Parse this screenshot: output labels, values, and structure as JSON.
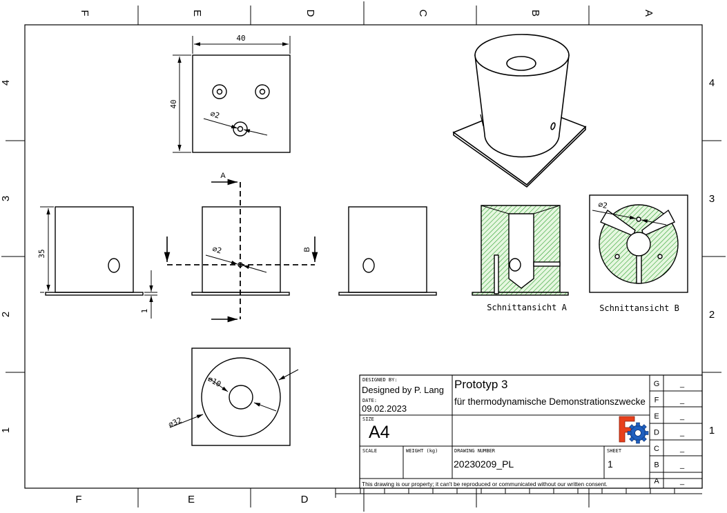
{
  "zone_letters": [
    "F",
    "E",
    "D",
    "C",
    "B",
    "A"
  ],
  "zone_numbers": [
    "4",
    "3",
    "2",
    "1"
  ],
  "dimensions": {
    "top_width": "40",
    "top_height": "40",
    "top_hole": "⌀2",
    "side_height": "35",
    "base_thickness": "1",
    "front_hole": "⌀2",
    "bottom_inner": "⌀10",
    "bottom_outer": "⌀32",
    "section_b_hole": "⌀2"
  },
  "section_marks": {
    "a": "A",
    "b": "B"
  },
  "captions": {
    "section_a": "Schnittansicht A",
    "section_b": "Schnittansicht B"
  },
  "title_block": {
    "designed_by_label": "DESIGNED BY:",
    "designed_by": "Designed by P. Lang",
    "date_label": "DATE:",
    "date": "09.02.2023",
    "size_label": "SIZE",
    "size": "A4",
    "title": "Prototyp 3",
    "subtitle": "für thermodynamische Demonstrationszwecke",
    "scale_label": "SCALE",
    "weight_label": "WEIGHT (kg)",
    "drawing_number_label": "DRAWING NUMBER",
    "drawing_number": "20230209_PL",
    "sheet_label": "SHEET",
    "sheet": "1",
    "disclaimer": "This drawing is our property; it can't be reproduced or communicated without our written consent.",
    "revisions": [
      "G",
      "F",
      "E",
      "D",
      "C",
      "B",
      "A"
    ],
    "revision_value": "_"
  },
  "colors": {
    "line": "#000000",
    "hatch": "#2ca02c",
    "hatch_fill": "#e6f7e0",
    "logo_red": "#e8401c",
    "logo_blue": "#1f5fbf"
  }
}
